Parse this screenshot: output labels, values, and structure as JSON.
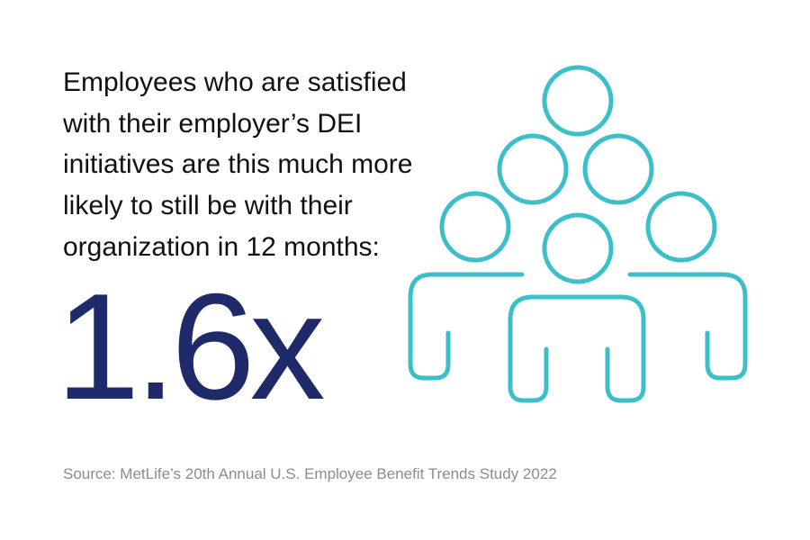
{
  "statement": {
    "lines": [
      "Employees who are satisfied",
      "with their employer’s DEI",
      "initiatives are this much more",
      "likely to still be with their",
      "organization in 12 months:"
    ]
  },
  "stat": "1.6x",
  "source": "Source: MetLife’s 20th Annual U.S. Employee Benefit Trends Study 2022"
}
